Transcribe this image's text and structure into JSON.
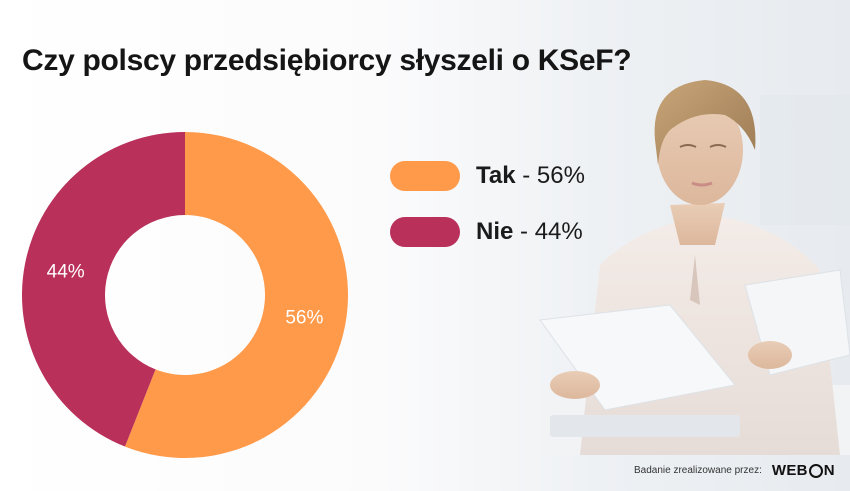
{
  "title": "Czy polscy przedsiębiorcy słyszeli o KSeF?",
  "chart_data": {
    "type": "pie",
    "categories": [
      "Tak",
      "Nie"
    ],
    "values": [
      56,
      44
    ],
    "unit": "%",
    "colors": [
      "#FF9A4A",
      "#B9305A"
    ],
    "data_labels": [
      "56%",
      "44%"
    ],
    "legend_placement": "right",
    "legend": [
      {
        "name": "Tak",
        "separator": " - ",
        "value_label": "56%"
      },
      {
        "name": "Nie",
        "separator": " - ",
        "value_label": "44%"
      }
    ]
  },
  "footer": {
    "note": "Badanie zrealizowane przez:",
    "logo_left": "WEB",
    "logo_right": "N"
  },
  "icons": {
    "photo": "woman-reading-documents-photo",
    "logo": "webcon-logo"
  }
}
